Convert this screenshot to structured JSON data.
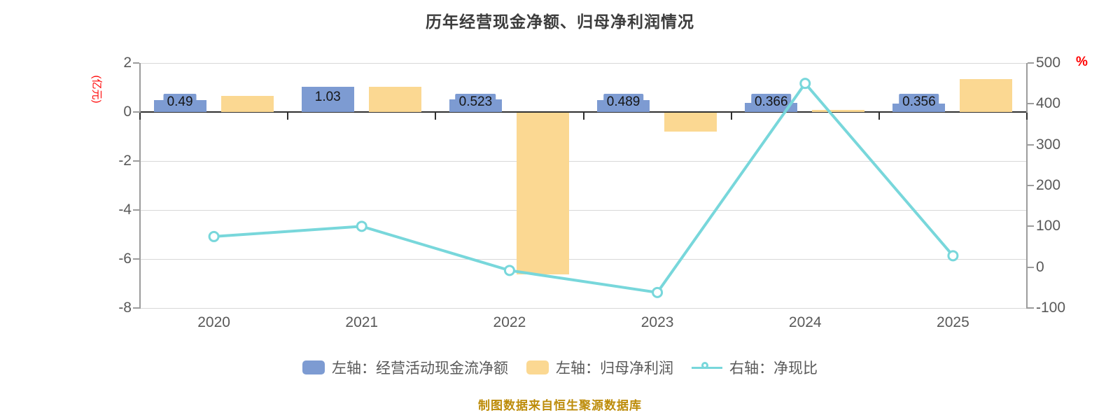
{
  "chart_data": {
    "type": "bar",
    "title": "历年经营现金净额、归母净利润情况",
    "footer": "制图数据来自恒生聚源数据库",
    "categories": [
      "2020",
      "2021",
      "2022",
      "2023",
      "2024",
      "2025"
    ],
    "series": [
      {
        "key": "operating-cashflow",
        "name": "左轴：经营活动现金流净额",
        "type": "bar",
        "axis": "left",
        "color": "#7d9bd2",
        "values": [
          0.49,
          1.03,
          0.523,
          0.489,
          0.366,
          0.356
        ],
        "labels": [
          "0.49",
          "1.03",
          "0.523",
          "0.489",
          "0.366",
          "0.356"
        ]
      },
      {
        "key": "net-profit",
        "name": "左轴：归母净利润",
        "type": "bar",
        "axis": "left",
        "color": "#fbd892",
        "values": [
          0.65,
          1.04,
          -6.6,
          -0.78,
          0.08,
          1.34
        ]
      },
      {
        "key": "net-cash-ratio",
        "name": "右轴：净现比",
        "type": "line",
        "axis": "right",
        "color": "#78d7db",
        "values": [
          75,
          100,
          -8,
          -62,
          450,
          28
        ]
      }
    ],
    "left_axis": {
      "unit": "(亿元)",
      "ticks": [
        2,
        0,
        -2,
        -4,
        -6,
        -8
      ],
      "max": 2,
      "min": -8
    },
    "right_axis": {
      "unit": "%",
      "ticks": [
        500,
        400,
        300,
        200,
        100,
        0,
        -100
      ],
      "max": 500,
      "min": -100
    },
    "legend_position": "bottom",
    "grid": true
  }
}
